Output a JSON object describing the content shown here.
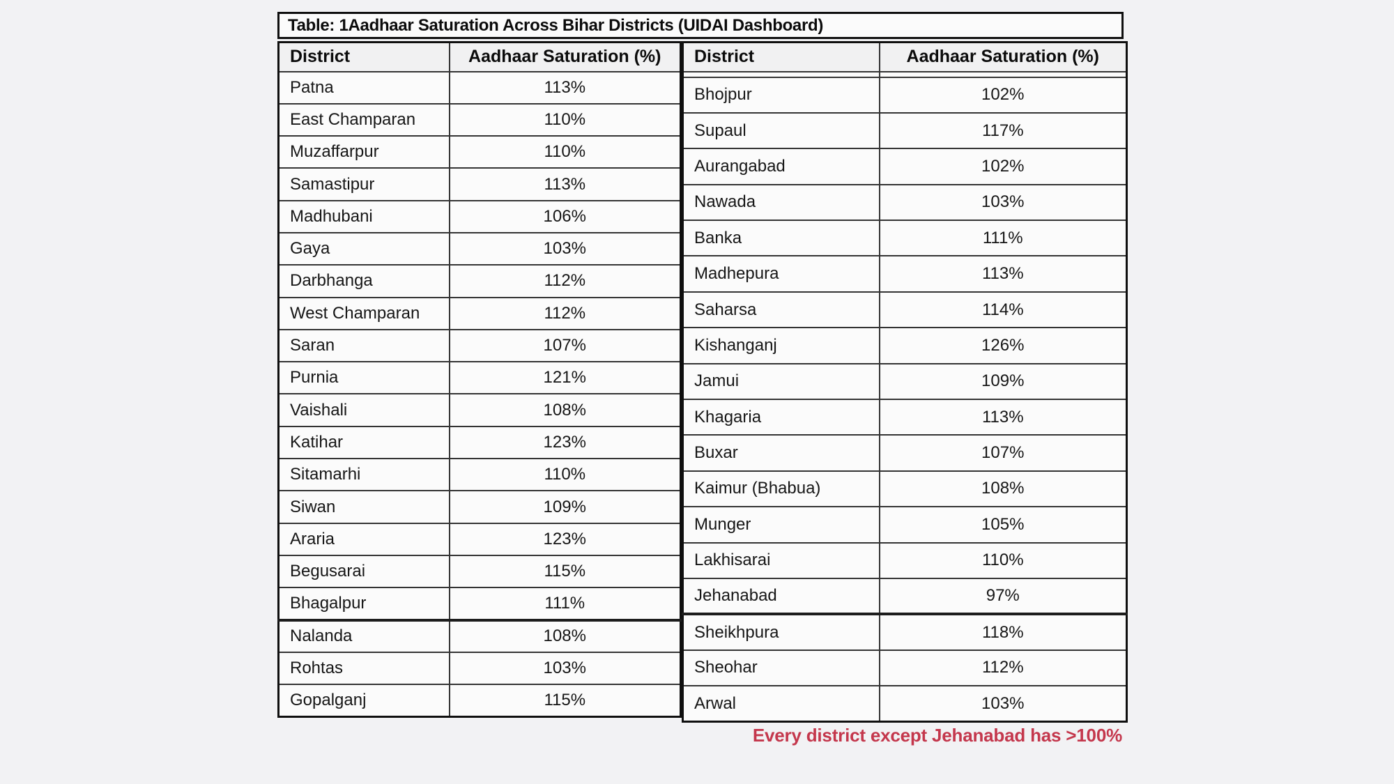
{
  "title": "Table: 1Aadhaar Saturation Across Bihar Districts (UIDAI Dashboard)",
  "columns": {
    "district": "District",
    "saturation": "Aadhaar Saturation (%)"
  },
  "left_table": {
    "rows": [
      [
        "Patna",
        "113%"
      ],
      [
        "East Champaran",
        "110%"
      ],
      [
        "Muzaffarpur",
        "110%"
      ],
      [
        "Samastipur",
        "113%"
      ],
      [
        "Madhubani",
        "106%"
      ],
      [
        "Gaya",
        "103%"
      ],
      [
        "Darbhanga",
        "112%"
      ],
      [
        "West Champaran",
        "112%"
      ],
      [
        "Saran",
        "107%"
      ],
      [
        "Purnia",
        "121%"
      ],
      [
        "Vaishali",
        "108%"
      ],
      [
        "Katihar",
        "123%"
      ],
      [
        "Sitamarhi",
        "110%"
      ],
      [
        "Siwan",
        "109%"
      ],
      [
        "Araria",
        "123%"
      ],
      [
        "Begusarai",
        "115%"
      ],
      [
        "Bhagalpur",
        "111%"
      ],
      [
        "Nalanda",
        "108%"
      ],
      [
        "Rohtas",
        "103%"
      ],
      [
        "Gopalganj",
        "115%"
      ]
    ]
  },
  "right_table": {
    "rows": [
      [
        "Bhojpur",
        "102%"
      ],
      [
        "Supaul",
        "117%"
      ],
      [
        "Aurangabad",
        "102%"
      ],
      [
        "Nawada",
        "103%"
      ],
      [
        "Banka",
        "111%"
      ],
      [
        "Madhepura",
        "113%"
      ],
      [
        "Saharsa",
        "114%"
      ],
      [
        "Kishanganj",
        "126%"
      ],
      [
        "Jamui",
        "109%"
      ],
      [
        "Khagaria",
        "113%"
      ],
      [
        "Buxar",
        "107%"
      ],
      [
        "Kaimur (Bhabua)",
        "108%"
      ],
      [
        "Munger",
        "105%"
      ],
      [
        "Lakhisarai",
        "110%"
      ],
      [
        "Jehanabad",
        "97%"
      ],
      [
        "Sheikhpura",
        "118%"
      ],
      [
        "Sheohar",
        "112%"
      ],
      [
        "Arwal",
        "103%"
      ]
    ]
  },
  "caption": "Every district except Jehanabad has >100%",
  "colors": {
    "caption_red": "#c4374c",
    "border_black": "#0f0f0f",
    "page_background": "#f2f2f4",
    "cell_background": "#fbfbfb",
    "header_background": "#f1f1f2"
  },
  "chart_data": {
    "type": "table",
    "title": "Table: 1Aadhaar Saturation Across Bihar Districts (UIDAI Dashboard)",
    "columns": [
      "District",
      "Aadhaar Saturation (%)"
    ],
    "rows": [
      {
        "district": "Patna",
        "saturation_pct": 113
      },
      {
        "district": "East Champaran",
        "saturation_pct": 110
      },
      {
        "district": "Muzaffarpur",
        "saturation_pct": 110
      },
      {
        "district": "Samastipur",
        "saturation_pct": 113
      },
      {
        "district": "Madhubani",
        "saturation_pct": 106
      },
      {
        "district": "Gaya",
        "saturation_pct": 103
      },
      {
        "district": "Darbhanga",
        "saturation_pct": 112
      },
      {
        "district": "West Champaran",
        "saturation_pct": 112
      },
      {
        "district": "Saran",
        "saturation_pct": 107
      },
      {
        "district": "Purnia",
        "saturation_pct": 121
      },
      {
        "district": "Vaishali",
        "saturation_pct": 108
      },
      {
        "district": "Katihar",
        "saturation_pct": 123
      },
      {
        "district": "Sitamarhi",
        "saturation_pct": 110
      },
      {
        "district": "Siwan",
        "saturation_pct": 109
      },
      {
        "district": "Araria",
        "saturation_pct": 123
      },
      {
        "district": "Begusarai",
        "saturation_pct": 115
      },
      {
        "district": "Bhagalpur",
        "saturation_pct": 111
      },
      {
        "district": "Nalanda",
        "saturation_pct": 108
      },
      {
        "district": "Rohtas",
        "saturation_pct": 103
      },
      {
        "district": "Gopalganj",
        "saturation_pct": 115
      },
      {
        "district": "Bhojpur",
        "saturation_pct": 102
      },
      {
        "district": "Supaul",
        "saturation_pct": 117
      },
      {
        "district": "Aurangabad",
        "saturation_pct": 102
      },
      {
        "district": "Nawada",
        "saturation_pct": 103
      },
      {
        "district": "Banka",
        "saturation_pct": 111
      },
      {
        "district": "Madhepura",
        "saturation_pct": 113
      },
      {
        "district": "Saharsa",
        "saturation_pct": 114
      },
      {
        "district": "Kishanganj",
        "saturation_pct": 126
      },
      {
        "district": "Jamui",
        "saturation_pct": 109
      },
      {
        "district": "Khagaria",
        "saturation_pct": 113
      },
      {
        "district": "Buxar",
        "saturation_pct": 107
      },
      {
        "district": "Kaimur (Bhabua)",
        "saturation_pct": 108
      },
      {
        "district": "Munger",
        "saturation_pct": 105
      },
      {
        "district": "Lakhisarai",
        "saturation_pct": 110
      },
      {
        "district": "Jehanabad",
        "saturation_pct": 97
      },
      {
        "district": "Sheikhpura",
        "saturation_pct": 118
      },
      {
        "district": "Sheohar",
        "saturation_pct": 112
      },
      {
        "district": "Arwal",
        "saturation_pct": 103
      }
    ],
    "annotation": "Every district except Jehanabad has >100%",
    "layout": "two side-by-side tables: first 20 districts in left table, remaining 18 in right table; annotation bottom-right in red"
  }
}
